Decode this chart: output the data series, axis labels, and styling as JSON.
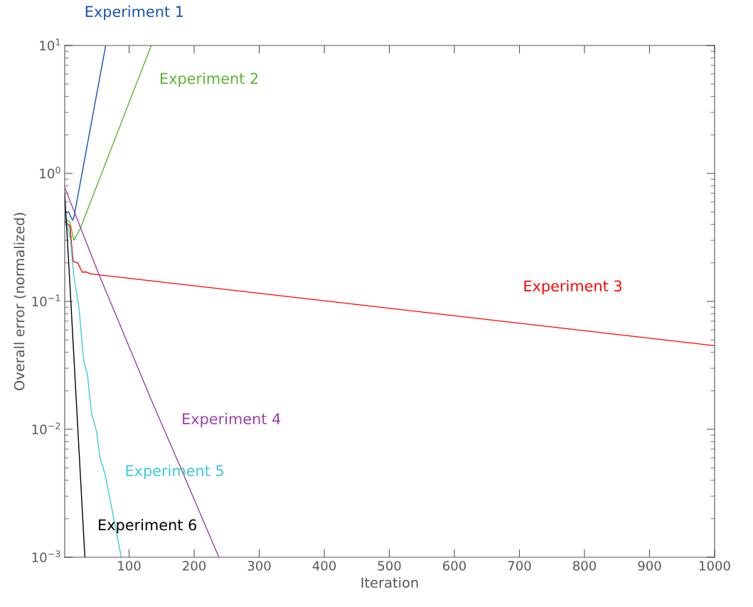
{
  "chart_data": {
    "type": "line",
    "xlabel": "Iteration",
    "ylabel": "Overall error (normalized)",
    "log": "y",
    "grid": false,
    "legend": false,
    "xlim": [
      1,
      1000
    ],
    "xticks": [
      100,
      200,
      300,
      400,
      500,
      600,
      700,
      800,
      900,
      1000
    ],
    "ylim": [
      0.001,
      10
    ],
    "yticks": [
      {
        "value": 0.001,
        "label": "10$^{−3}$"
      },
      {
        "value": 0.01,
        "label": "10$^{−2}$"
      },
      {
        "value": 0.1,
        "label": "10$^{−1}$"
      },
      {
        "value": 1,
        "label": "10$^{0}$"
      },
      {
        "value": 10,
        "label": "10$^{1}$"
      }
    ],
    "series": [
      {
        "name": "Experiment 1",
        "color": "#1450b4",
        "x": [
          1,
          7,
          13,
          15,
          64
        ],
        "values": [
          0.49,
          0.5,
          0.43,
          0.45,
          10
        ]
      },
      {
        "name": "Experiment 2",
        "color": "#5cb531",
        "x": [
          1,
          9,
          15,
          25,
          32,
          134
        ],
        "values": [
          0.44,
          0.42,
          0.3,
          0.37,
          0.46,
          10
        ]
      },
      {
        "name": "Experiment 3",
        "color": "#ff0000",
        "x": [
          1,
          9,
          14,
          21,
          28,
          34,
          41,
          1000
        ],
        "values": [
          0.42,
          0.39,
          0.205,
          0.2,
          0.169,
          0.17,
          0.164,
          0.045
        ]
      },
      {
        "name": "Experiment 4",
        "color": "#9b3ea5",
        "x": [
          1,
          53,
          136,
          180,
          238
        ],
        "values": [
          0.78,
          0.165,
          0.0161,
          0.0049,
          0.001
        ]
      },
      {
        "name": "Experiment 5",
        "color": "#3ec8d8",
        "x": [
          1,
          10,
          15,
          23,
          30,
          36,
          42,
          50,
          55,
          63,
          88
        ],
        "values": [
          0.5,
          0.3,
          0.158,
          0.089,
          0.0346,
          0.0268,
          0.0136,
          0.0096,
          0.00607,
          0.00447,
          0.001
        ]
      },
      {
        "name": "Experiment 6",
        "color": "#000000",
        "x": [
          1,
          9,
          32
        ],
        "values": [
          0.7,
          0.136,
          0.001
        ]
      }
    ]
  }
}
